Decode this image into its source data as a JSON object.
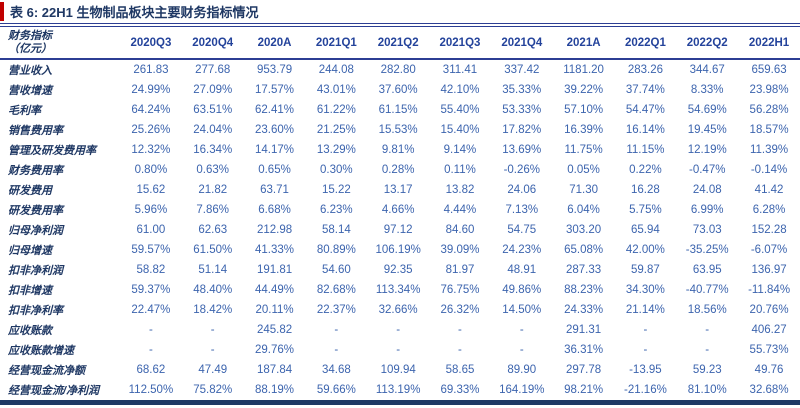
{
  "title": "表 6: 22H1 生物制品板块主要财务指标情况",
  "colors": {
    "accent_red": "#C00000",
    "title_navy": "#1F3864",
    "header_blue": "#24439B",
    "value_blue": "#3C64AE",
    "line_blue": "#2C3E94"
  },
  "table": {
    "header": {
      "indicator_label_line1": "财务指标",
      "indicator_label_line2": "（亿元）",
      "columns": [
        "2020Q3",
        "2020Q4",
        "2020A",
        "2021Q1",
        "2021Q2",
        "2021Q3",
        "2021Q4",
        "2021A",
        "2022Q1",
        "2022Q2",
        "2022H1"
      ]
    },
    "rows": [
      {
        "label": "营业收入",
        "values": [
          "261.83",
          "277.68",
          "953.79",
          "244.08",
          "282.80",
          "311.41",
          "337.42",
          "1181.20",
          "283.26",
          "344.67",
          "659.63"
        ]
      },
      {
        "label": "营收增速",
        "values": [
          "24.99%",
          "27.09%",
          "17.57%",
          "43.01%",
          "37.60%",
          "42.10%",
          "35.33%",
          "39.22%",
          "37.74%",
          "8.33%",
          "23.98%"
        ]
      },
      {
        "label": "毛利率",
        "values": [
          "64.24%",
          "63.51%",
          "62.41%",
          "61.22%",
          "61.15%",
          "55.40%",
          "53.33%",
          "57.10%",
          "54.47%",
          "54.69%",
          "56.28%"
        ]
      },
      {
        "label": "销售费用率",
        "values": [
          "25.26%",
          "24.04%",
          "23.60%",
          "21.25%",
          "15.53%",
          "15.40%",
          "17.82%",
          "16.39%",
          "16.14%",
          "19.45%",
          "18.57%"
        ]
      },
      {
        "label": "管理及研发费用率",
        "values": [
          "12.32%",
          "16.34%",
          "14.17%",
          "13.29%",
          "9.81%",
          "9.14%",
          "13.69%",
          "11.75%",
          "11.15%",
          "12.19%",
          "11.39%"
        ]
      },
      {
        "label": "财务费用率",
        "values": [
          "0.80%",
          "0.63%",
          "0.65%",
          "0.30%",
          "0.28%",
          "0.11%",
          "-0.26%",
          "0.05%",
          "0.22%",
          "-0.47%",
          "-0.14%"
        ]
      },
      {
        "label": "研发费用",
        "values": [
          "15.62",
          "21.82",
          "63.71",
          "15.22",
          "13.17",
          "13.82",
          "24.06",
          "71.30",
          "16.28",
          "24.08",
          "41.42"
        ]
      },
      {
        "label": "研发费用率",
        "values": [
          "5.96%",
          "7.86%",
          "6.68%",
          "6.23%",
          "4.66%",
          "4.44%",
          "7.13%",
          "6.04%",
          "5.75%",
          "6.99%",
          "6.28%"
        ]
      },
      {
        "label": "归母净利润",
        "values": [
          "61.00",
          "62.63",
          "212.98",
          "58.14",
          "97.12",
          "84.60",
          "54.75",
          "303.20",
          "65.94",
          "73.03",
          "152.28"
        ]
      },
      {
        "label": "归母增速",
        "values": [
          "59.57%",
          "61.50%",
          "41.33%",
          "80.89%",
          "106.19%",
          "39.09%",
          "24.23%",
          "65.08%",
          "42.00%",
          "-35.25%",
          "-6.07%"
        ]
      },
      {
        "label": "扣非净利润",
        "values": [
          "58.82",
          "51.14",
          "191.81",
          "54.60",
          "92.35",
          "81.97",
          "48.91",
          "287.33",
          "59.87",
          "63.95",
          "136.97"
        ]
      },
      {
        "label": "扣非增速",
        "values": [
          "59.37%",
          "48.40%",
          "44.49%",
          "82.68%",
          "113.34%",
          "76.75%",
          "49.86%",
          "88.23%",
          "34.30%",
          "-40.77%",
          "-11.84%"
        ]
      },
      {
        "label": "扣非净利率",
        "values": [
          "22.47%",
          "18.42%",
          "20.11%",
          "22.37%",
          "32.66%",
          "26.32%",
          "14.50%",
          "24.33%",
          "21.14%",
          "18.56%",
          "20.76%"
        ]
      },
      {
        "label": "应收账款",
        "values": [
          "-",
          "-",
          "245.82",
          "-",
          "-",
          "-",
          "-",
          "291.31",
          "-",
          "-",
          "406.27"
        ]
      },
      {
        "label": "应收账款增速",
        "values": [
          "-",
          "-",
          "29.76%",
          "-",
          "-",
          "-",
          "-",
          "36.31%",
          "-",
          "-",
          "55.73%"
        ]
      },
      {
        "label": "经营现金流净额",
        "values": [
          "68.62",
          "47.49",
          "187.84",
          "34.68",
          "109.94",
          "58.65",
          "89.90",
          "297.78",
          "-13.95",
          "59.23",
          "49.76"
        ]
      },
      {
        "label": "经营现金流/净利润",
        "values": [
          "112.50%",
          "75.82%",
          "88.19%",
          "59.66%",
          "113.19%",
          "69.33%",
          "164.19%",
          "98.21%",
          "-21.16%",
          "81.10%",
          "32.68%"
        ]
      }
    ]
  }
}
